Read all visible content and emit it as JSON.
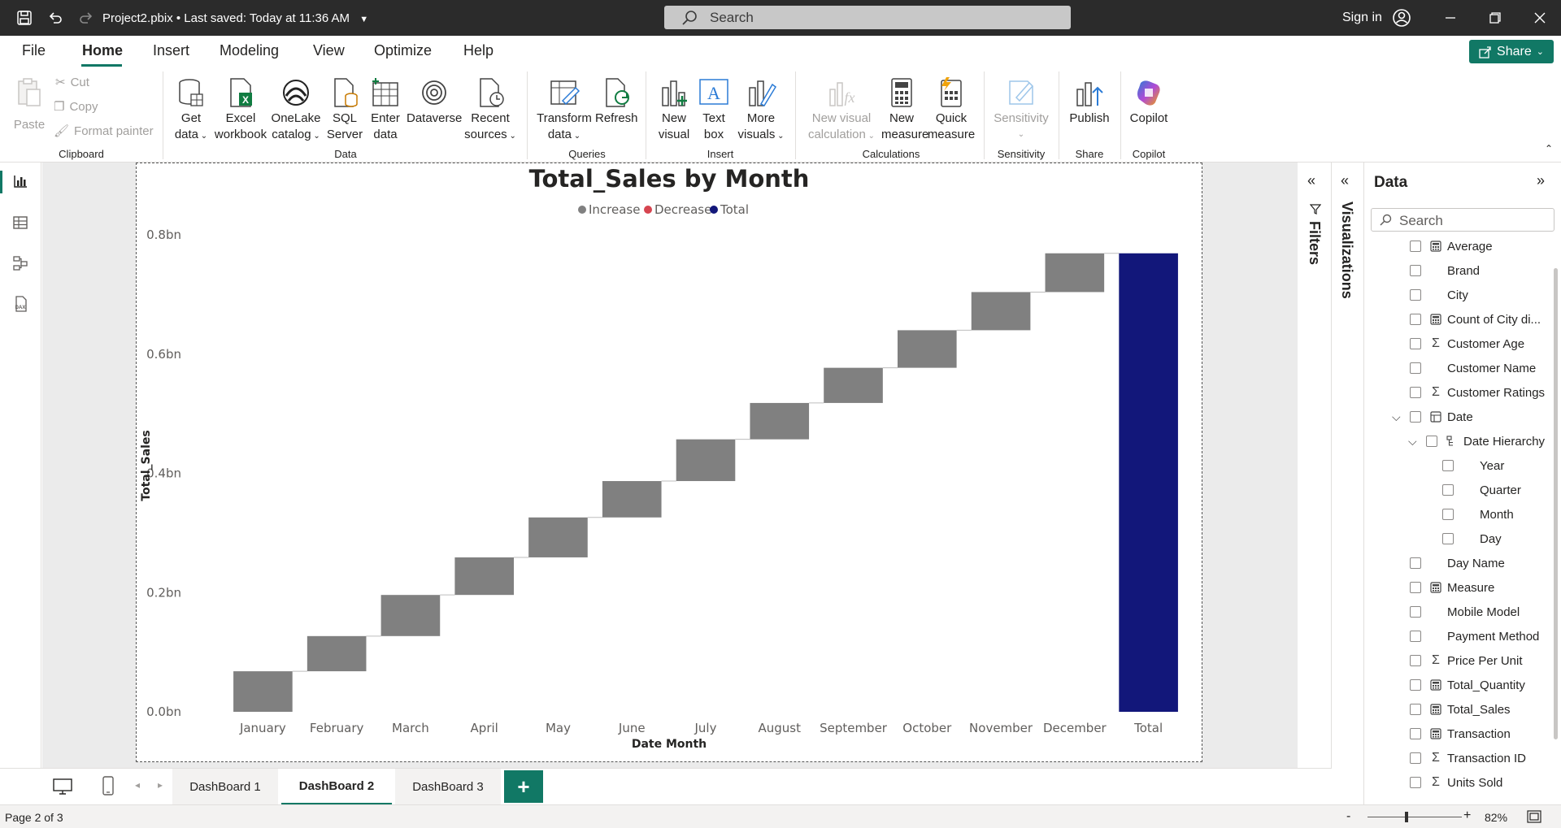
{
  "titlebar": {
    "title": "Project2.pbix • Last saved: Today at 11:36 AM",
    "search_placeholder": "Search",
    "sign_in": "Sign in"
  },
  "ribbon_tabs": [
    "File",
    "Home",
    "Insert",
    "Modeling",
    "View",
    "Optimize",
    "Help"
  ],
  "share_label": "Share",
  "clipboard": {
    "paste": "Paste",
    "cut": "Cut",
    "copy": "Copy",
    "format_painter": "Format painter",
    "group": "Clipboard"
  },
  "data_group": {
    "get_data": [
      "Get",
      "data"
    ],
    "excel": [
      "Excel",
      "workbook"
    ],
    "onelake": [
      "OneLake",
      "catalog"
    ],
    "sql": [
      "SQL",
      "Server"
    ],
    "enter": [
      "Enter",
      "data"
    ],
    "dataverse": "Dataverse",
    "recent": [
      "Recent",
      "sources"
    ],
    "group": "Data"
  },
  "queries_group": {
    "transform": [
      "Transform",
      "data"
    ],
    "refresh": "Refresh",
    "group": "Queries"
  },
  "insert_group": {
    "new_visual": [
      "New",
      "visual"
    ],
    "text_box": [
      "Text",
      "box"
    ],
    "more_visuals": [
      "More",
      "visuals"
    ],
    "group": "Insert"
  },
  "calc_group": {
    "new_visual_calc": [
      "New visual",
      "calculation"
    ],
    "new_measure": [
      "New",
      "measure"
    ],
    "quick_measure": [
      "Quick",
      "measure"
    ],
    "group": "Calculations"
  },
  "sensitivity_group": {
    "label": "Sensitivity",
    "group": "Sensitivity"
  },
  "share_group": {
    "publish": "Publish",
    "group": "Share"
  },
  "copilot_group": {
    "copilot": "Copilot",
    "group": "Copilot"
  },
  "colors": {
    "accent": "#117865",
    "increase": "#808080",
    "decrease": "#d64550",
    "total": "#12177a"
  },
  "chart_data": {
    "type": "waterfall",
    "title": "Total_Sales by Month",
    "legend": [
      "Increase",
      "Decrease",
      "Total"
    ],
    "xlabel": "Date Month",
    "ylabel": "Total_Sales",
    "y_ticks": [
      "0.0bn",
      "0.2bn",
      "0.4bn",
      "0.6bn",
      "0.8bn"
    ],
    "ylim": [
      0,
      0.8
    ],
    "categories": [
      "January",
      "February",
      "March",
      "April",
      "May",
      "June",
      "July",
      "August",
      "September",
      "October",
      "November",
      "December",
      "Total"
    ],
    "increments": [
      0.068,
      0.059,
      0.069,
      0.063,
      0.067,
      0.061,
      0.07,
      0.061,
      0.059,
      0.063,
      0.064,
      0.065
    ],
    "total": 0.769
  },
  "panes": {
    "filters": "Filters",
    "visualizations": "Visualizations",
    "data_title": "Data",
    "data_search": "Search"
  },
  "fields": [
    {
      "label": "Average",
      "icon": "calc",
      "indent": 0
    },
    {
      "label": "Brand",
      "icon": "",
      "indent": 0
    },
    {
      "label": "City",
      "icon": "",
      "indent": 0
    },
    {
      "label": "Count of City di...",
      "icon": "calc",
      "indent": 0
    },
    {
      "label": "Customer Age",
      "icon": "sigma",
      "indent": 0
    },
    {
      "label": "Customer Name",
      "icon": "",
      "indent": 0
    },
    {
      "label": "Customer Ratings",
      "icon": "sigma",
      "indent": 0
    },
    {
      "label": "Date",
      "icon": "table",
      "indent": 0
    },
    {
      "label": "Date Hierarchy",
      "icon": "hier",
      "indent": 1
    },
    {
      "label": "Year",
      "icon": "",
      "indent": 2
    },
    {
      "label": "Quarter",
      "icon": "",
      "indent": 2
    },
    {
      "label": "Month",
      "icon": "",
      "indent": 2
    },
    {
      "label": "Day",
      "icon": "",
      "indent": 2
    },
    {
      "label": "Day Name",
      "icon": "",
      "indent": 0
    },
    {
      "label": "Measure",
      "icon": "calc",
      "indent": 0
    },
    {
      "label": "Mobile Model",
      "icon": "",
      "indent": 0
    },
    {
      "label": "Payment Method",
      "icon": "",
      "indent": 0
    },
    {
      "label": "Price Per Unit",
      "icon": "sigma",
      "indent": 0
    },
    {
      "label": "Total_Quantity",
      "icon": "calc",
      "indent": 0
    },
    {
      "label": "Total_Sales",
      "icon": "calc",
      "indent": 0
    },
    {
      "label": "Transaction",
      "icon": "calc",
      "indent": 0
    },
    {
      "label": "Transaction ID",
      "icon": "sigma",
      "indent": 0
    },
    {
      "label": "Units Sold",
      "icon": "sigma",
      "indent": 0
    }
  ],
  "pages": [
    "DashBoard 1",
    "DashBoard 2",
    "DashBoard 3"
  ],
  "active_page_index": 1,
  "status": {
    "page": "Page 2 of 3",
    "zoom": "82%",
    "zoom_fraction": 0.82,
    "minus": "-",
    "plus": "+"
  }
}
